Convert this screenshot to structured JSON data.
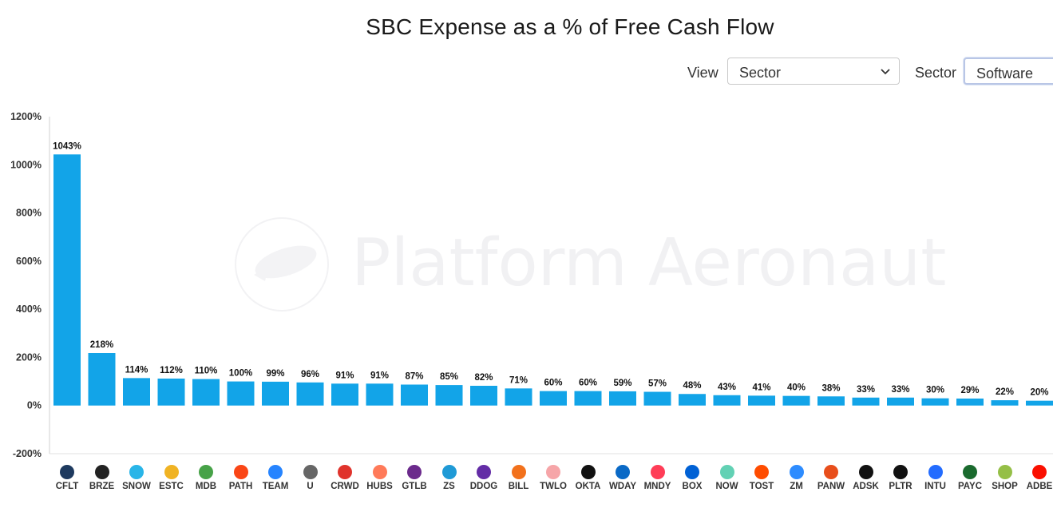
{
  "header": {
    "title": "SBC Expense as a % of Free Cash Flow"
  },
  "controls": {
    "view_label": "View",
    "view_value": "Sector",
    "sector_label": "Sector",
    "sector_value": "Software"
  },
  "watermark": {
    "text": "Platform Aeronaut"
  },
  "chart_data": {
    "type": "bar",
    "title": "SBC Expense as a % of Free Cash Flow",
    "xlabel": "",
    "ylabel": "",
    "ylim": [
      -200,
      1200
    ],
    "yticks": [
      "1200%",
      "1000%",
      "800%",
      "600%",
      "400%",
      "200%",
      "0%",
      "-200%"
    ],
    "ytick_values": [
      1200,
      1000,
      800,
      600,
      400,
      200,
      0,
      -200
    ],
    "categories": [
      "CFLT",
      "BRZE",
      "SNOW",
      "ESTC",
      "MDB",
      "PATH",
      "TEAM",
      "U",
      "CRWD",
      "HUBS",
      "GTLB",
      "ZS",
      "DDOG",
      "BILL",
      "TWLO",
      "OKTA",
      "WDAY",
      "MNDY",
      "BOX",
      "NOW",
      "TOST",
      "ZM",
      "PANW",
      "ADSK",
      "PLTR",
      "INTU",
      "PAYC",
      "SHOP",
      "ADBE"
    ],
    "values": [
      1043,
      218,
      114,
      112,
      110,
      100,
      99,
      96,
      91,
      91,
      87,
      85,
      82,
      71,
      60,
      60,
      59,
      57,
      48,
      43,
      41,
      40,
      38,
      33,
      33,
      30,
      29,
      22,
      20
    ],
    "data_labels": [
      "1043%",
      "218%",
      "114%",
      "112%",
      "110%",
      "100%",
      "99%",
      "96%",
      "91%",
      "91%",
      "87%",
      "85%",
      "82%",
      "71%",
      "60%",
      "60%",
      "59%",
      "57%",
      "48%",
      "43%",
      "41%",
      "40%",
      "38%",
      "33%",
      "33%",
      "30%",
      "29%",
      "22%",
      "20%"
    ],
    "bar_color": "#12a4e8",
    "grid": false,
    "legend": "none"
  },
  "icons": [
    {
      "name": "cflt-logo-icon",
      "color": "#1e3a5f"
    },
    {
      "name": "brze-logo-icon",
      "color": "#222222"
    },
    {
      "name": "snow-logo-icon",
      "color": "#29b5e8"
    },
    {
      "name": "estc-logo-icon",
      "color": "#f0b323"
    },
    {
      "name": "mdb-logo-icon",
      "color": "#47a248"
    },
    {
      "name": "path-logo-icon",
      "color": "#fa4616"
    },
    {
      "name": "team-logo-icon",
      "color": "#2684ff"
    },
    {
      "name": "u-logo-icon",
      "color": "#666666"
    },
    {
      "name": "crwd-logo-icon",
      "color": "#e0332c"
    },
    {
      "name": "hubs-logo-icon",
      "color": "#ff7a59"
    },
    {
      "name": "gtlb-logo-icon",
      "color": "#6b2a8c"
    },
    {
      "name": "zs-logo-icon",
      "color": "#1f9ad6"
    },
    {
      "name": "ddog-logo-icon",
      "color": "#632ca6"
    },
    {
      "name": "bill-logo-icon",
      "color": "#f2711c"
    },
    {
      "name": "twlo-logo-icon",
      "color": "#f6a5a8"
    },
    {
      "name": "okta-logo-icon",
      "color": "#111111"
    },
    {
      "name": "wday-logo-icon",
      "color": "#0a69c6"
    },
    {
      "name": "mndy-logo-icon",
      "color": "#ff3d57"
    },
    {
      "name": "box-logo-icon",
      "color": "#0061d5"
    },
    {
      "name": "now-logo-icon",
      "color": "#62d1b4"
    },
    {
      "name": "tost-logo-icon",
      "color": "#ff4c00"
    },
    {
      "name": "zm-logo-icon",
      "color": "#2d8cff"
    },
    {
      "name": "panw-logo-icon",
      "color": "#e84e1b"
    },
    {
      "name": "adsk-logo-icon",
      "color": "#111111"
    },
    {
      "name": "pltr-logo-icon",
      "color": "#111111"
    },
    {
      "name": "intu-logo-icon",
      "color": "#236cff"
    },
    {
      "name": "payc-logo-icon",
      "color": "#1a6a2e"
    },
    {
      "name": "shop-logo-icon",
      "color": "#95bf47"
    },
    {
      "name": "adbe-logo-icon",
      "color": "#fa0f00"
    }
  ]
}
